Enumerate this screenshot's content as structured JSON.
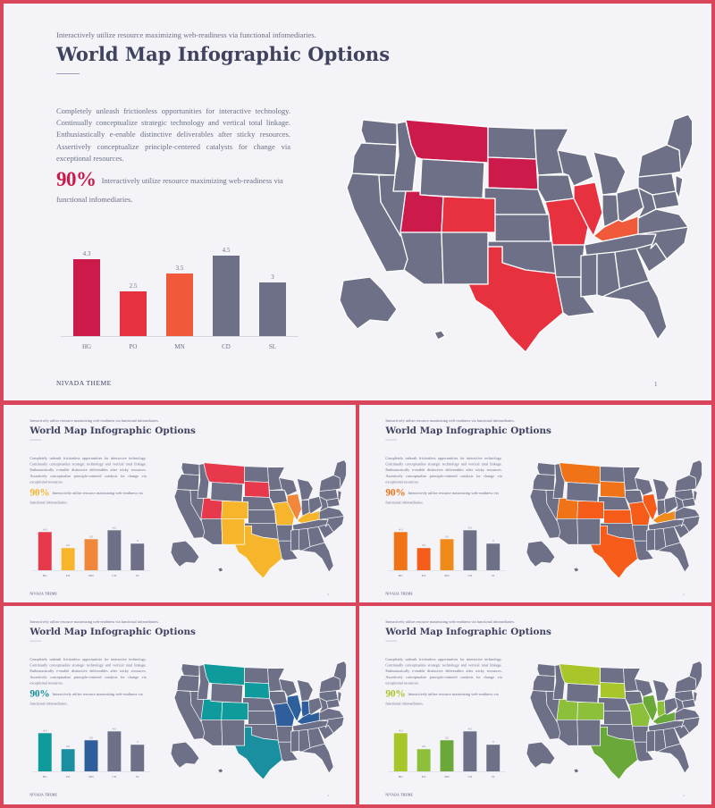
{
  "subtitle": "Interactively utilize resource maximizing web-readiness via functional infomediaries.",
  "title": "World Map Infographic Options",
  "body": "Completely unleash frictionless opportunities for interactive technology. Continually conceptualize strategic technology and vertical total linkage. Enthusiastically e-enable distinctive deliverables after sticky resources. Assertively conceptualize principle-centered catalysts for change via exceptional resources.",
  "percent": "90%",
  "percent_text": "Interactively utilize resource maximizing web-readiness via functional infomediaries.",
  "footer": "NIVADA THEME",
  "page_number": "1",
  "map_base_color": "#6e7088",
  "chart_data": {
    "type": "bar",
    "categories": [
      "HG",
      "PO",
      "MN",
      "CD",
      "SL"
    ],
    "values": [
      4.3,
      2.5,
      3.5,
      4.5,
      3
    ],
    "data_labels": [
      "4.3",
      "2.5",
      "3.5",
      "4.5",
      "3"
    ],
    "ylim": [
      0,
      5
    ],
    "bar_colors": [
      "#cc1b4a",
      "#e8313f",
      "#f05a3a",
      "#6e7088",
      "#6e7088"
    ]
  },
  "themes": [
    {
      "name": "red",
      "colors": [
        "#cc1b4a",
        "#e8313f",
        "#f05a3a"
      ],
      "percent_color": "#cc1b4a"
    },
    {
      "name": "yellow",
      "colors": [
        "#e8394c",
        "#f7b52b",
        "#f0873a"
      ],
      "percent_color": "#f7b52b"
    },
    {
      "name": "orange",
      "colors": [
        "#f07318",
        "#f55c1a",
        "#f08a1a"
      ],
      "percent_color": "#f07318"
    },
    {
      "name": "teal",
      "colors": [
        "#0f9b9b",
        "#1a8fa0",
        "#2e5f9c"
      ],
      "percent_color": "#1a8fa0"
    },
    {
      "name": "green",
      "colors": [
        "#a8c62a",
        "#8cbf3a",
        "#6aa83a"
      ],
      "percent_color": "#a8c62a"
    }
  ]
}
